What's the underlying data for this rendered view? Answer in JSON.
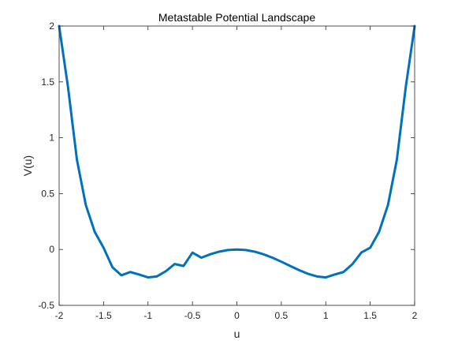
{
  "chart_data": {
    "type": "line",
    "title": "Metastable Potential Landscape",
    "xlabel": "u",
    "ylabel": "V(u)",
    "xlim": [
      -2,
      2
    ],
    "ylim": [
      -0.5,
      2
    ],
    "xticks": [
      -2,
      -1.5,
      -1,
      -0.5,
      0,
      0.5,
      1,
      1.5,
      2
    ],
    "xtick_labels": [
      "-2",
      "-1.5",
      "-1",
      "-0.5",
      "0",
      "0.5",
      "1",
      "1.5",
      "2"
    ],
    "yticks": [
      -0.5,
      0,
      0.5,
      1,
      1.5,
      2
    ],
    "ytick_labels": [
      "-0.5",
      "0",
      "0.5",
      "1",
      "1.5",
      "2"
    ],
    "grid": false,
    "legend": "none",
    "series": [
      {
        "color": "#0072BD",
        "x": [
          -2.0,
          -1.9,
          -1.8,
          -1.7,
          -1.6,
          -1.5,
          -1.4,
          -1.3,
          -1.2,
          -1.1,
          -1.0,
          -0.9,
          -0.8,
          -0.7,
          -0.6,
          -0.5,
          -0.4,
          -0.3,
          -0.2,
          -0.1,
          0.0,
          0.1,
          0.2,
          0.3,
          0.4,
          0.5,
          0.6,
          0.7,
          0.8,
          0.9,
          1.0,
          1.1,
          1.2,
          1.3,
          1.4,
          1.5,
          1.6,
          1.7,
          1.8,
          1.9,
          2.0
        ],
        "y": [
          2.0,
          1.453,
          0.8044,
          0.399,
          0.1584,
          0.0156,
          -0.1596,
          -0.231,
          -0.2016,
          -0.224,
          -0.25,
          -0.241,
          -0.1952,
          -0.13,
          -0.1476,
          -0.0281,
          -0.0736,
          -0.043,
          -0.0196,
          -0.005,
          0.0,
          -0.005,
          -0.0196,
          -0.043,
          -0.0736,
          -0.1094,
          -0.1476,
          -0.185,
          -0.2176,
          -0.241,
          -0.25,
          -0.224,
          -0.2016,
          -0.131,
          -0.0276,
          0.0156,
          0.1584,
          0.399,
          0.8044,
          1.453,
          2.0
        ]
      }
    ]
  }
}
